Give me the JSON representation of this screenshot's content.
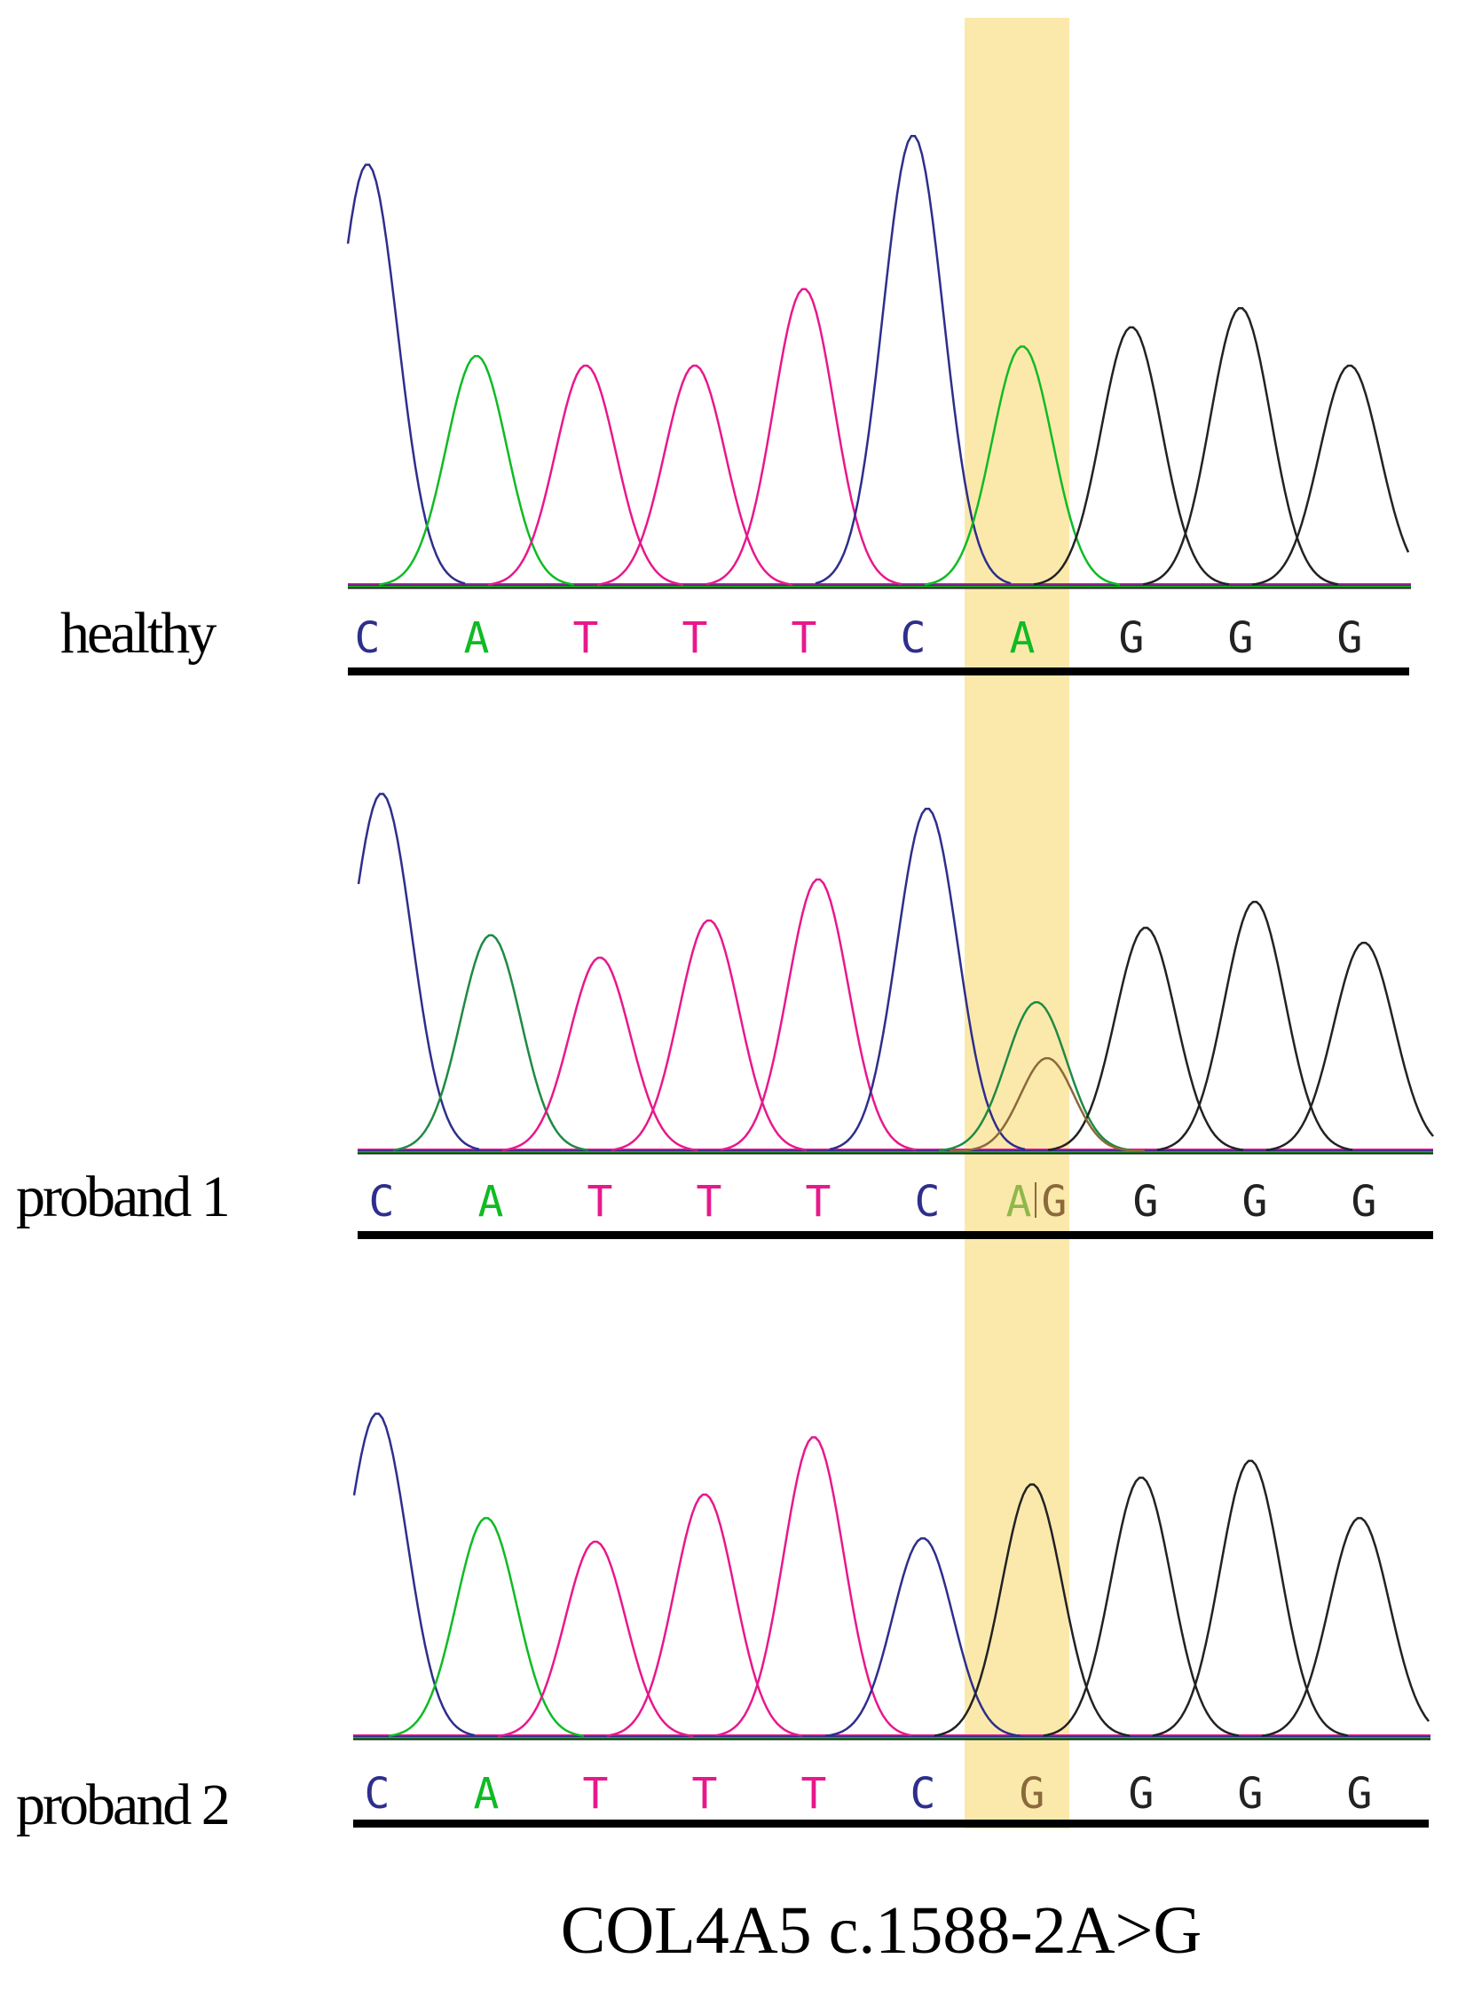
{
  "colors": {
    "C": "#2e2e8c",
    "A": "#0fbb23",
    "A_mixed": "#1f8a44",
    "A_faded": "#8fb84a",
    "T": "#e8188c",
    "G": "#222222",
    "G_faded": "#8a6a3a",
    "highlight": "#fbe9ac"
  },
  "panels": [
    {
      "label": "healthy",
      "bases": [
        "C",
        "A",
        "T",
        "T",
        "T",
        "C",
        "A",
        "G",
        "G",
        "G"
      ],
      "peak_heights": [
        0.88,
        0.48,
        0.46,
        0.46,
        0.62,
        0.94,
        0.5,
        0.54,
        0.58,
        0.46
      ]
    },
    {
      "label": "proband 1",
      "bases": [
        "C",
        "A",
        "T",
        "T",
        "T",
        "C",
        "A|G",
        "G",
        "G",
        "G"
      ],
      "peak_heights": [
        0.96,
        0.58,
        0.52,
        0.62,
        0.73,
        0.92,
        0.4,
        0.6,
        0.67,
        0.56
      ],
      "secondary_peak": {
        "base": "G",
        "position": 7,
        "height": 0.25
      }
    },
    {
      "label": "proband 2",
      "bases": [
        "C",
        "A",
        "T",
        "T",
        "T",
        "C",
        "G",
        "G",
        "G",
        "G"
      ],
      "peak_heights": [
        0.96,
        0.65,
        0.58,
        0.72,
        0.89,
        0.59,
        0.75,
        0.77,
        0.82,
        0.65
      ]
    }
  ],
  "mutation_position": 7,
  "caption": "COL4A5 c.1588-2A>G"
}
